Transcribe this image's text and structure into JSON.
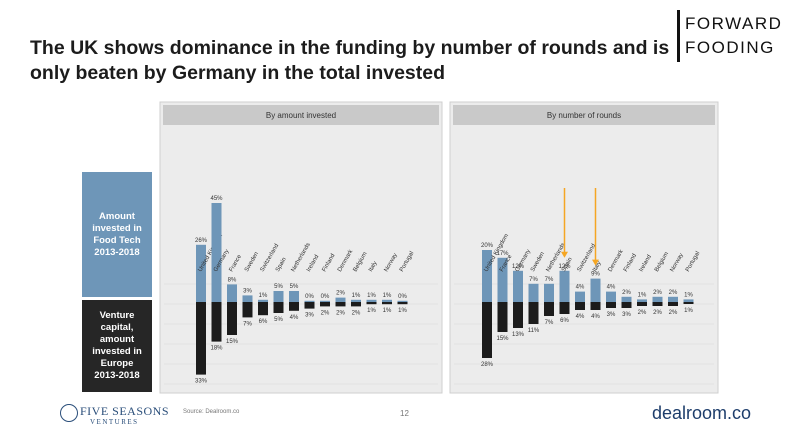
{
  "slide": {
    "title": "The UK shows dominance in the funding by number of rounds and is only beaten by Germany in the total invested",
    "brand_line1": "FORWARD",
    "brand_line2": "FOODING",
    "side_top_lines": [
      "Amount",
      "invested in",
      "Food Tech",
      "2013-2018"
    ],
    "side_bottom_lines": [
      "Venture",
      "capital,",
      "amount",
      "invested in",
      "Europe",
      "2013-2018"
    ],
    "footer_logo_name": "FIVE SEASONS",
    "footer_logo_sub": "VENTURES",
    "source": "Source: Dealroom.co",
    "page_number": "12",
    "dealroom_logo": "dealroom.co",
    "colors": {
      "top_bar": "#6e96b8",
      "bottom_bar": "#1c1c1c",
      "arrow": "#f5a623",
      "panel_bg": "#ececec",
      "panel_header": "#c9c9c9"
    }
  },
  "chart_data": [
    {
      "type": "bar",
      "title": "By amount invested",
      "categories": [
        "United Kingdom",
        "Germany",
        "France",
        "Sweden",
        "Switzerland",
        "Spain",
        "Netherlands",
        "Ireland",
        "Finland",
        "Denmark",
        "Belgium",
        "Italy",
        "Norway",
        "Portugal"
      ],
      "series": [
        {
          "role": "top",
          "values": [
            26,
            45,
            8,
            3,
            1,
            5,
            5,
            0,
            0,
            2,
            1,
            1,
            1,
            0
          ],
          "labels": [
            "26%",
            "45%",
            "8%",
            "3%",
            "1%",
            "5%",
            "5%",
            "0%",
            "0%",
            "2%",
            "1%",
            "1%",
            "1%",
            "0%"
          ]
        },
        {
          "role": "bottom",
          "values": [
            33,
            18,
            15,
            7,
            6,
            5,
            4,
            3,
            2,
            2,
            2,
            1,
            1,
            1
          ],
          "labels": [
            "33%",
            "18%",
            "15%",
            "7%",
            "6%",
            "5%",
            "4%",
            "3%",
            "2%",
            "2%",
            "2%",
            "1%",
            "1%",
            "1%"
          ]
        }
      ],
      "arrows": []
    },
    {
      "type": "bar",
      "title": "By number of rounds",
      "categories": [
        "United Kingdom",
        "France",
        "Germany",
        "Sweden",
        "Netherlands",
        "Spain",
        "Switzerland",
        "Italy",
        "Denmark",
        "Finland",
        "Ireland",
        "Belgium",
        "Norway",
        "Portugal"
      ],
      "series": [
        {
          "role": "top",
          "values": [
            20,
            17,
            12,
            7,
            7,
            12,
            4,
            9,
            4,
            2,
            1,
            2,
            2,
            1
          ],
          "labels": [
            "20%",
            "17%",
            "12%",
            "7%",
            "7%",
            "12%",
            "4%",
            "9%",
            "4%",
            "2%",
            "1%",
            "2%",
            "2%",
            "1%"
          ]
        },
        {
          "role": "bottom",
          "values": [
            28,
            15,
            13,
            11,
            7,
            6,
            4,
            4,
            3,
            3,
            2,
            2,
            2,
            1
          ],
          "labels": [
            "28%",
            "15%",
            "13%",
            "11%",
            "7%",
            "6%",
            "4%",
            "4%",
            "3%",
            "3%",
            "2%",
            "2%",
            "2%",
            "1%"
          ]
        }
      ],
      "arrows": [
        5,
        7
      ]
    }
  ]
}
